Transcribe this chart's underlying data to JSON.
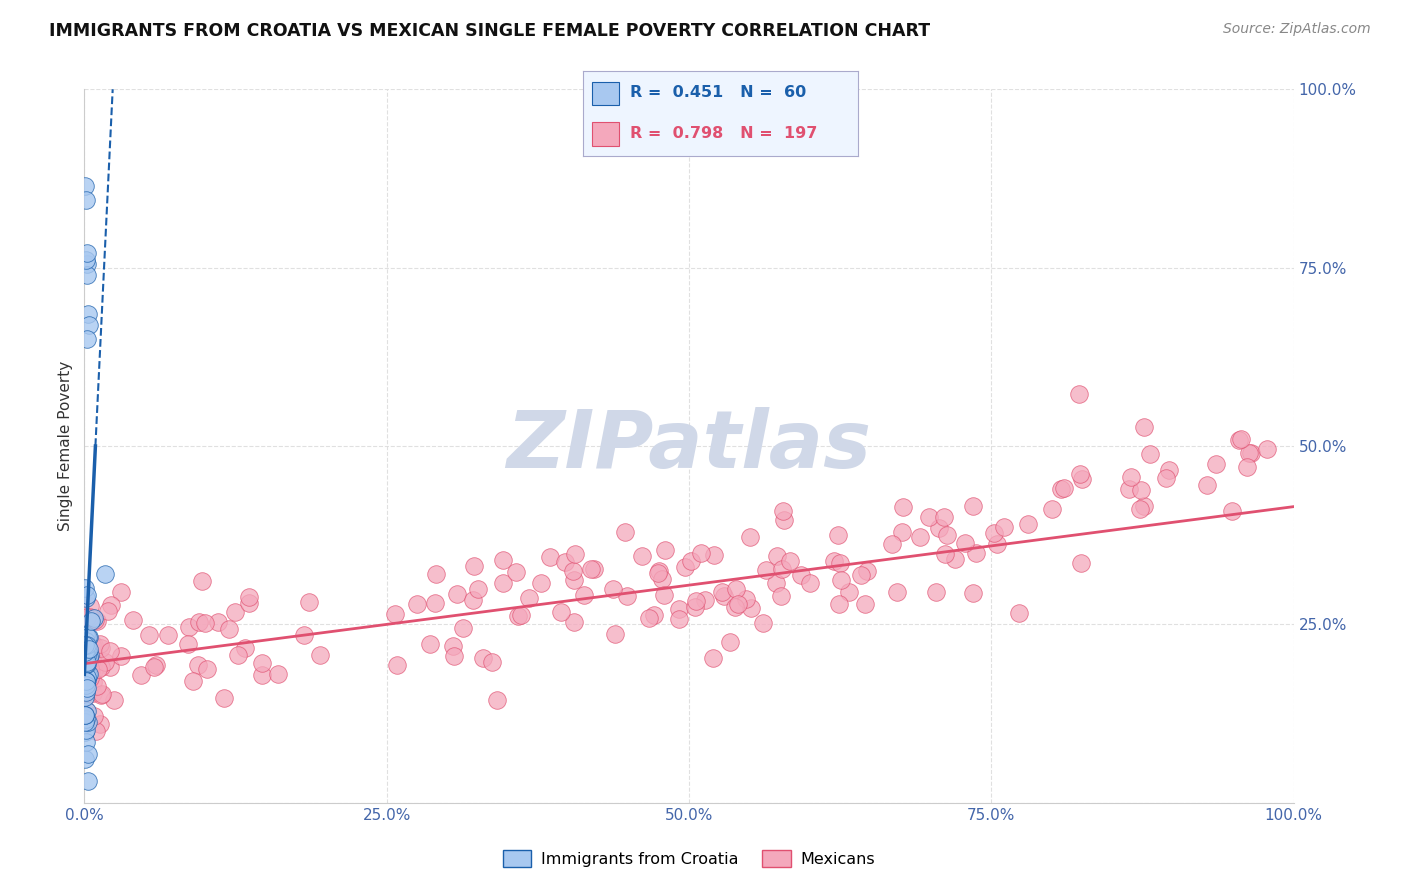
{
  "title": "IMMIGRANTS FROM CROATIA VS MEXICAN SINGLE FEMALE POVERTY CORRELATION CHART",
  "source": "Source: ZipAtlas.com",
  "ylabel": "Single Female Poverty",
  "xlim": [
    0,
    1.0
  ],
  "ylim": [
    0,
    1.0
  ],
  "xticklabels": [
    "0.0%",
    "25.0%",
    "50.0%",
    "75.0%",
    "100.0%"
  ],
  "yticklabels": [
    "",
    "25.0%",
    "50.0%",
    "75.0%",
    "100.0%"
  ],
  "croatia_color": "#A8C8F0",
  "mexico_color": "#F4A8BC",
  "croatia_trend_color": "#1A5FAB",
  "mexico_trend_color": "#E05070",
  "R_croatia": 0.451,
  "N_croatia": 60,
  "R_mexico": 0.798,
  "N_mexico": 197,
  "background_color": "#FFFFFF",
  "grid_color": "#DDDDDD",
  "watermark_color": "#D0D8E8",
  "mexico_trend_start_y": 0.195,
  "mexico_trend_end_y": 0.415,
  "croatia_trend_slope": 35.0,
  "croatia_trend_intercept": 0.18
}
